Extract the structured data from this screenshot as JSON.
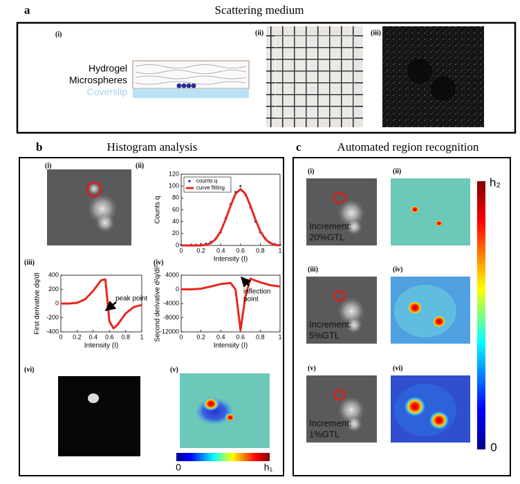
{
  "panel_a": {
    "label": "a",
    "title": "Scattering medium",
    "sublabels": [
      "(i)",
      "(ii)",
      "(iii)"
    ],
    "hydrogel": "Hydrogel",
    "microspheres": "Microspheres",
    "coverslip": "Coverslip"
  },
  "panel_b": {
    "label": "b",
    "title": "Histogram analysis",
    "sublabels": [
      "(i)",
      "(ii)",
      "(iii)",
      "(iv)",
      "(vi)",
      "(v)"
    ],
    "colorbar": {
      "min_label": "0",
      "max_label": "h₁"
    }
  },
  "panel_c": {
    "label": "c",
    "title": "Automated region recognition",
    "sublabels": [
      "(i)",
      "(ii)",
      "(iii)",
      "(iv)",
      "(v)",
      "(vi)"
    ],
    "rows": [
      {
        "increment_label": "Increment:",
        "increment_value": "20%GTL"
      },
      {
        "increment_label": "Increment:",
        "increment_value": "5%GTL"
      },
      {
        "increment_label": "Increment:",
        "increment_value": "1%GTL"
      }
    ],
    "colorbar": {
      "max_label": "h₂",
      "min_label": "0"
    }
  },
  "chart_data": [
    {
      "type": "line",
      "xlabel": "Intensity (I)",
      "ylabel": "Counts q",
      "x": [
        0,
        0.05,
        0.1,
        0.15,
        0.2,
        0.25,
        0.3,
        0.35,
        0.4,
        0.45,
        0.5,
        0.55,
        0.6,
        0.65,
        0.7,
        0.75,
        0.8,
        0.85,
        0.9,
        0.95,
        1
      ],
      "series": [
        {
          "name": "counts q",
          "color": "#1f3fbf",
          "marker": "dot",
          "values": [
            1,
            0,
            1,
            1,
            2,
            3,
            6,
            12,
            22,
            46,
            70,
            90,
            100,
            85,
            64,
            40,
            22,
            12,
            5,
            2,
            1
          ]
        },
        {
          "name": "curve fitting",
          "color": "#e8261c",
          "marker": "line",
          "values": [
            0,
            0,
            0,
            0,
            0,
            1,
            4,
            11,
            24,
            44,
            67,
            87,
            95,
            87,
            67,
            44,
            24,
            11,
            4,
            1,
            0
          ]
        }
      ],
      "legend": "upper left",
      "xlim": [
        0,
        1
      ],
      "xticks": [
        0,
        0.2,
        0.4,
        0.6,
        0.8,
        1
      ],
      "ylim": [
        0,
        120
      ],
      "yticks": [
        0,
        20,
        40,
        60,
        80,
        100,
        120
      ]
    },
    {
      "type": "line",
      "xlabel": "Intensity (I)",
      "ylabel": "First derivative dq/dI",
      "x": [
        0,
        0.1,
        0.2,
        0.3,
        0.4,
        0.5,
        0.55,
        0.6,
        0.65,
        0.7,
        0.8,
        0.9,
        1
      ],
      "series": [
        {
          "color": "#e8261c",
          "marker": "line",
          "values": [
            0,
            0,
            10,
            60,
            180,
            330,
            340,
            -250,
            -350,
            -300,
            -140,
            -50,
            -20
          ]
        }
      ],
      "annotation": [
        "peak point"
      ],
      "xlim": [
        0,
        1
      ],
      "xticks": [
        0,
        0.2,
        0.4,
        0.6,
        0.8,
        1
      ],
      "ylim": [
        -400,
        400
      ],
      "yticks": [
        -400,
        -200,
        0,
        200,
        400
      ]
    },
    {
      "type": "line",
      "xlabel": "Intensity (I)",
      "ylabel": "Second derivative d²q/dI²",
      "x": [
        0,
        0.1,
        0.2,
        0.3,
        0.4,
        0.5,
        0.55,
        0.6,
        0.65,
        0.7,
        0.8,
        0.9,
        1
      ],
      "series": [
        {
          "color": "#e8261c",
          "marker": "line",
          "values": [
            0,
            0,
            200,
            800,
            1500,
            1800,
            0,
            -11500,
            -2000,
            3000,
            2000,
            1200,
            800
          ]
        }
      ],
      "annotation": [
        "inflection",
        "point"
      ],
      "xlim": [
        0,
        1
      ],
      "xticks": [
        0,
        0.2,
        0.4,
        0.6,
        0.8,
        1
      ],
      "ylim": [
        -12000,
        4000
      ],
      "yticks": [
        -12000,
        -8000,
        -4000,
        0,
        4000
      ]
    }
  ]
}
